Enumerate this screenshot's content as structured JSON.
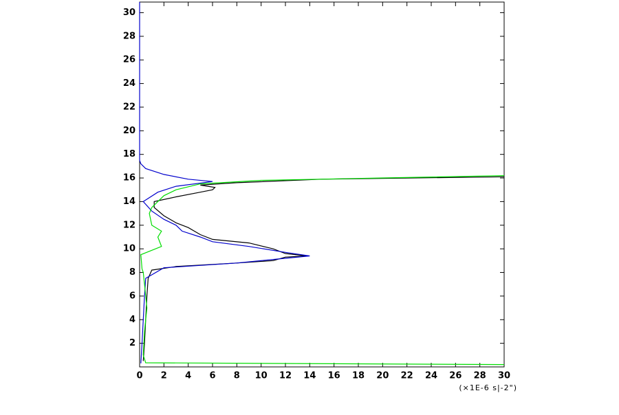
{
  "chart_data": {
    "type": "line",
    "x_label": "(×1E-6 s|-2\")",
    "xlim": [
      0,
      30
    ],
    "ylim": [
      0,
      30.9
    ],
    "xticks": [
      0,
      2,
      4,
      6,
      8,
      10,
      12,
      14,
      16,
      18,
      20,
      22,
      24,
      26,
      28,
      30
    ],
    "yticks": [
      2,
      4,
      6,
      8,
      10,
      12,
      14,
      16,
      18,
      20,
      22,
      24,
      26,
      28,
      30
    ],
    "series": [
      {
        "color": "#000000",
        "x": [
          0.3,
          0.4,
          0.5,
          0.6,
          0.7,
          1,
          3,
          8,
          11,
          12,
          13.8,
          12,
          11,
          9,
          6,
          5,
          4,
          3,
          2,
          1.2,
          1.2,
          3,
          5,
          6,
          6.2,
          5,
          8,
          15,
          30
        ],
        "y": [
          0.5,
          2,
          4,
          6,
          7.5,
          8.2,
          8.5,
          8.8,
          9.0,
          9.3,
          9.4,
          9.6,
          10,
          10.5,
          10.8,
          11.2,
          11.8,
          12.2,
          12.8,
          13.5,
          14,
          14.4,
          14.8,
          15,
          15.2,
          15.4,
          15.6,
          15.9,
          16.1
        ]
      },
      {
        "color": "#0000cc",
        "x": [
          0.1,
          0.2,
          0.3,
          0.4,
          0.5,
          2,
          8,
          11,
          14,
          12,
          9,
          6,
          5,
          3.5,
          3,
          2,
          1,
          0.3,
          1.5,
          3,
          6,
          4,
          2,
          0.5,
          0.1,
          0,
          0
        ],
        "y": [
          0.3,
          2,
          4,
          6,
          7.5,
          8.4,
          8.8,
          9.1,
          9.4,
          9.7,
          10.2,
          10.6,
          11,
          11.5,
          12,
          12.5,
          13.2,
          14,
          14.8,
          15.3,
          15.7,
          15.9,
          16.3,
          16.8,
          17.2,
          17.5,
          30.9
        ]
      },
      {
        "color": "#00dd00",
        "x": [
          30,
          0.5,
          0.3,
          0.4,
          0.6,
          0.4,
          0.3,
          0.2,
          0.1,
          1.8,
          1.5,
          1.8,
          1,
          0.8,
          1,
          2,
          3,
          5,
          10,
          20,
          30
        ],
        "y": [
          0.2,
          0.35,
          1,
          3,
          5,
          7,
          8,
          8.3,
          9.5,
          10.2,
          11,
          11.5,
          12,
          13,
          13.5,
          14.5,
          15,
          15.5,
          15.8,
          16.0,
          16.2
        ]
      }
    ]
  }
}
